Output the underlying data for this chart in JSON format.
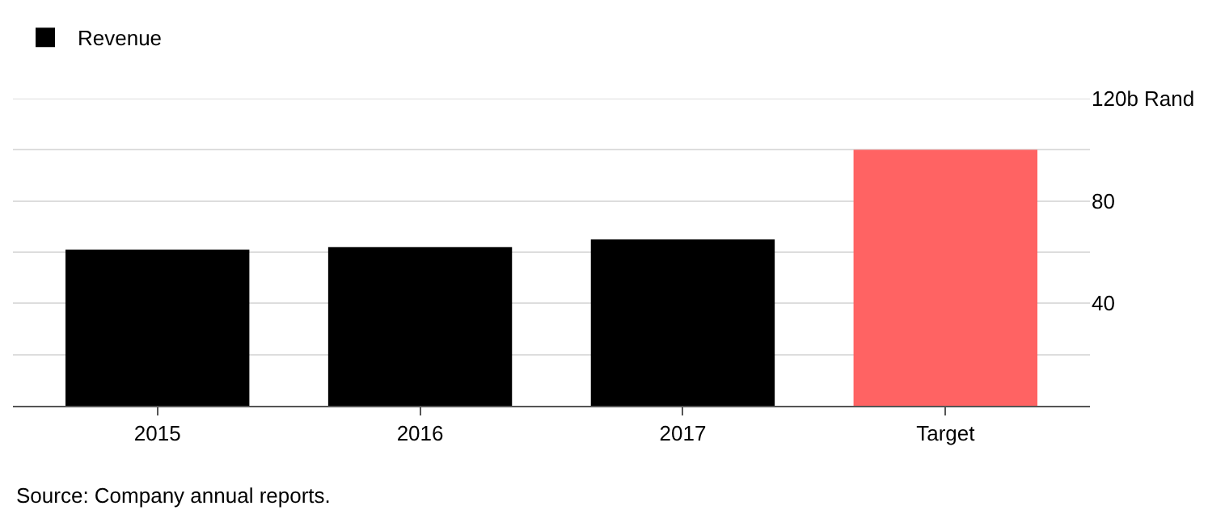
{
  "chart_data": {
    "type": "bar",
    "categories": [
      "2015",
      "2016",
      "2017",
      "Target"
    ],
    "series": [
      {
        "name": "Revenue",
        "colors": [
          "#000000",
          "#000000",
          "#000000",
          "#ff6363"
        ],
        "values": [
          61,
          62,
          65,
          100
        ]
      }
    ],
    "ylim": [
      0,
      120
    ],
    "yticks": [
      {
        "value": 20,
        "label": null
      },
      40,
      {
        "value": 60,
        "label": null
      },
      80,
      {
        "value": 100,
        "label": null
      },
      {
        "value": 120,
        "label": "120b Rand"
      }
    ],
    "grid": "y",
    "legend": "top left",
    "annotations": [
      "Source: Company annual reports."
    ]
  }
}
